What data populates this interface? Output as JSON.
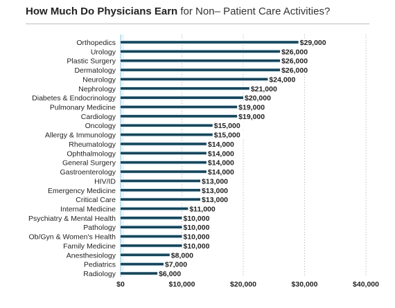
{
  "title": {
    "bold": "How Much Do Physicians Earn",
    "rest": " for Non– Patient Care Activities?"
  },
  "colors": {
    "bar": "#17455a",
    "bar_edge": "#e6f5fb",
    "label_bg": "#ffffff",
    "text": "#222222",
    "grid": "#9e9e9e",
    "band": "#eaf7fb",
    "axis": "#8ec7dc"
  },
  "chart_data": {
    "type": "bar",
    "orientation": "horizontal",
    "categories": [
      "Orthopedics",
      "Urology",
      "Plastic Surgery",
      "Dermatology",
      "Neurology",
      "Nephrology",
      "Diabetes & Endocrinology",
      "Pulmonary Medicine",
      "Cardiology",
      "Oncology",
      "Allergy & Immunology",
      "Rheumatology",
      "Ophthalmology",
      "General Surgery",
      "Gastroenterology",
      "HIV/ID",
      "Emergency Medicine",
      "Critical Care",
      "Internal Medicine",
      "Psychiatry & Mental Health",
      "Pathology",
      "Ob/Gyn & Women's Health",
      "Family Medicine",
      "Anesthesiology",
      "Pediatrics",
      "Radiology"
    ],
    "values": [
      29000,
      26000,
      26000,
      26000,
      24000,
      21000,
      20000,
      19000,
      19000,
      15000,
      15000,
      14000,
      14000,
      14000,
      14000,
      13000,
      13000,
      13000,
      11000,
      10000,
      10000,
      10000,
      10000,
      8000,
      7000,
      6000
    ],
    "data_labels": [
      "$29,000",
      "$26,000",
      "$26,000",
      "$26,000",
      "$24,000",
      "$21,000",
      "$20,000",
      "$19,000",
      "$19,000",
      "$15,000",
      "$15,000",
      "$14,000",
      "$14,000",
      "$14,000",
      "$14,000",
      "$13,000",
      "$13,000",
      "$13,000",
      "$11,000",
      "$10,000",
      "$10,000",
      "$10,000",
      "$10,000",
      "$8,000",
      "$7,000",
      "$6,000"
    ],
    "xlim": [
      0,
      40000
    ],
    "xticks": [
      0,
      10000,
      20000,
      30000,
      40000
    ],
    "xtick_labels": [
      "$0",
      "$10,000",
      "$20,000",
      "$30,000",
      "$40,000"
    ],
    "grid": true,
    "legend": "none"
  }
}
